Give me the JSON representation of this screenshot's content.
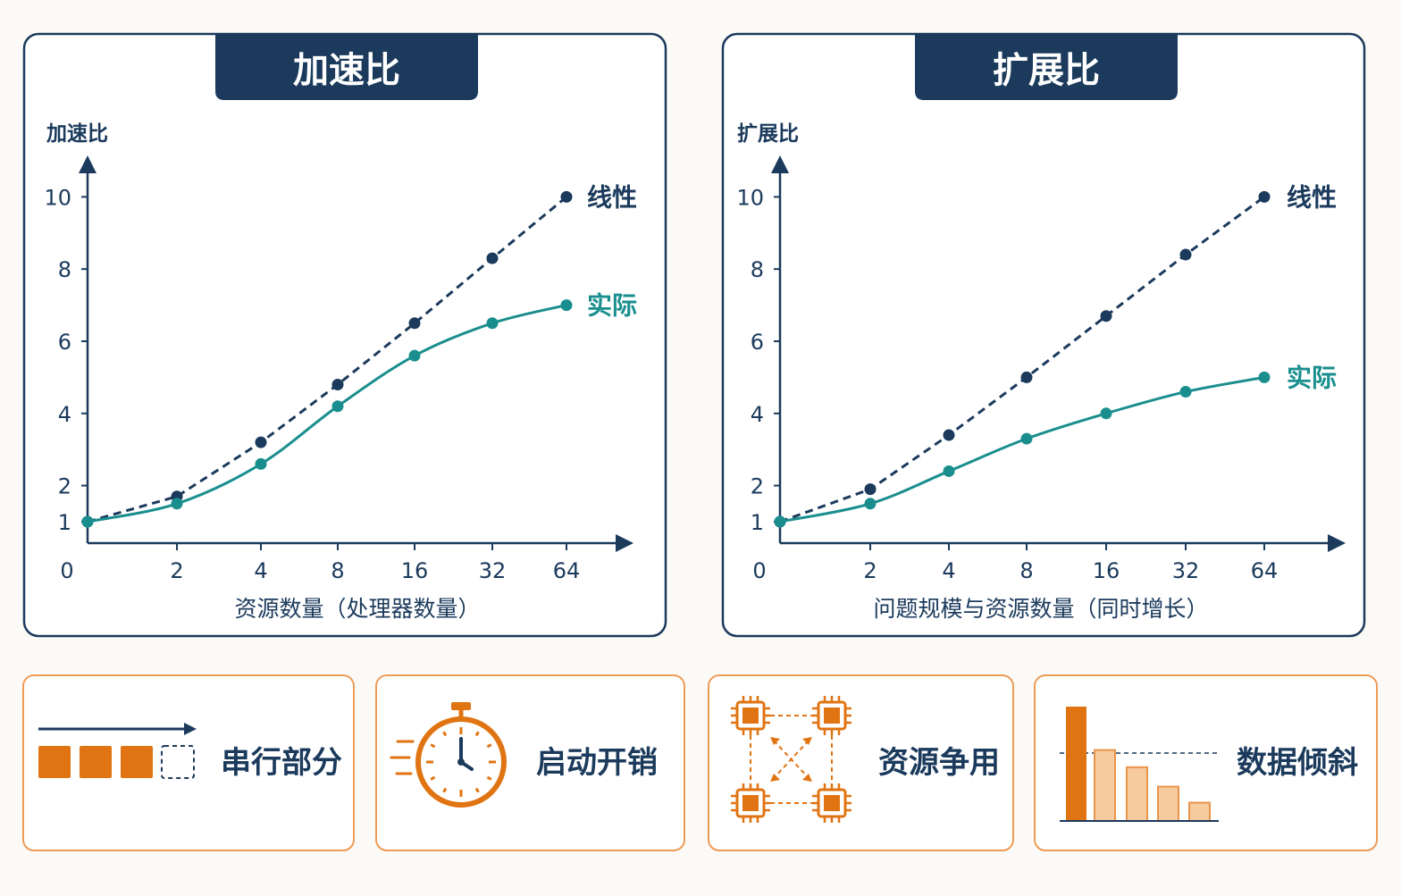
{
  "theme": {
    "navy": "#1b3a5c",
    "teal": "#1a8e8e",
    "orange": "#e07412",
    "orange_light": "#f6cba0",
    "background": "#fbfaf6"
  },
  "chart_data": [
    {
      "type": "line",
      "title": "加速比",
      "ylabel": "加速比",
      "xlabel": "资源数量（处理器数量）",
      "x_origin_label": "0",
      "x": [
        "1",
        "2",
        "4",
        "8",
        "16",
        "32",
        "64"
      ],
      "x_tick_labels": [
        "2",
        "4",
        "8",
        "16",
        "32",
        "64"
      ],
      "y_ticks": [
        1,
        2,
        4,
        6,
        8,
        10
      ],
      "ylim": [
        0,
        10
      ],
      "series": [
        {
          "name": "线性",
          "style": "dashed",
          "color": "#1b3a5c",
          "values": [
            1,
            1.7,
            3.2,
            4.8,
            6.5,
            8.3,
            10
          ]
        },
        {
          "name": "实际",
          "style": "solid",
          "color": "#1a8e8e",
          "values": [
            1,
            1.5,
            2.6,
            4.2,
            5.6,
            6.5,
            7.0
          ]
        }
      ]
    },
    {
      "type": "line",
      "title": "扩展比",
      "ylabel": "扩展比",
      "xlabel": "问题规模与资源数量（同时增长）",
      "x_origin_label": "0",
      "x": [
        "1",
        "2",
        "4",
        "8",
        "16",
        "32",
        "64"
      ],
      "x_tick_labels": [
        "2",
        "4",
        "8",
        "16",
        "32",
        "64"
      ],
      "y_ticks": [
        1,
        2,
        4,
        6,
        8,
        10
      ],
      "ylim": [
        0,
        10
      ],
      "series": [
        {
          "name": "线性",
          "style": "dashed",
          "color": "#1b3a5c",
          "values": [
            1,
            1.9,
            3.4,
            5.0,
            6.7,
            8.4,
            10
          ]
        },
        {
          "name": "实际",
          "style": "solid",
          "color": "#1a8e8e",
          "values": [
            1,
            1.5,
            2.4,
            3.3,
            4.0,
            4.6,
            5.0
          ]
        }
      ]
    }
  ],
  "factors": [
    {
      "label": "串行部分",
      "icon": "serial-blocks-icon"
    },
    {
      "label": "启动开销",
      "icon": "stopwatch-icon"
    },
    {
      "label": "资源争用",
      "icon": "chip-contention-icon"
    },
    {
      "label": "数据倾斜",
      "icon": "skewed-bars-icon",
      "bar_levels": [
        1.0,
        0.62,
        0.47,
        0.3,
        0.16
      ]
    }
  ]
}
